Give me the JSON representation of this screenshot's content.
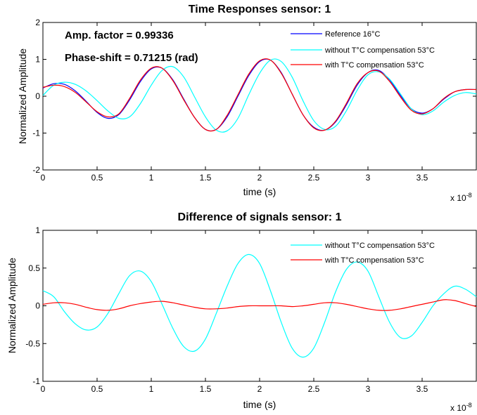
{
  "chart_data": [
    {
      "type": "line",
      "title": "Time Responses sensor: 1",
      "xlabel": "time (s)",
      "ylabel": "Normalized Amplitude",
      "x_multiplier_label": "x 10",
      "x_multiplier_exponent": "-8",
      "xlim": [
        0,
        4
      ],
      "ylim": [
        -2,
        2
      ],
      "x_ticks": [
        0,
        0.5,
        1,
        1.5,
        2,
        2.5,
        3,
        3.5
      ],
      "y_ticks": [
        -2,
        -1,
        0,
        1,
        2
      ],
      "grid": false,
      "legend_position": "top-right",
      "annotations": [
        "Amp. factor = 0.99336",
        "Phase-shift = 0.71215 (rad)"
      ],
      "x": [
        0,
        0.1,
        0.2,
        0.3,
        0.4,
        0.5,
        0.6,
        0.7,
        0.8,
        0.9,
        1.0,
        1.1,
        1.2,
        1.3,
        1.4,
        1.5,
        1.6,
        1.7,
        1.8,
        1.9,
        2.0,
        2.1,
        2.2,
        2.3,
        2.4,
        2.5,
        2.6,
        2.7,
        2.8,
        2.9,
        3.0,
        3.1,
        3.2,
        3.3,
        3.4,
        3.5,
        3.6,
        3.7,
        3.8,
        3.9,
        4.0
      ],
      "series": [
        {
          "name": "Reference 16°C",
          "color": "#0000ff",
          "values": [
            0.22,
            0.34,
            0.32,
            0.14,
            -0.14,
            -0.44,
            -0.6,
            -0.5,
            -0.1,
            0.4,
            0.74,
            0.76,
            0.44,
            -0.08,
            -0.58,
            -0.9,
            -0.9,
            -0.56,
            0.0,
            0.56,
            0.94,
            0.98,
            0.64,
            0.06,
            -0.5,
            -0.84,
            -0.92,
            -0.7,
            -0.24,
            0.3,
            0.64,
            0.7,
            0.44,
            0.02,
            -0.34,
            -0.46,
            -0.34,
            -0.08,
            0.12,
            0.18,
            0.18
          ]
        },
        {
          "name": "without T°C compensation 53°C",
          "color": "#00ffff",
          "values": [
            0.02,
            0.3,
            0.38,
            0.32,
            0.14,
            -0.12,
            -0.4,
            -0.6,
            -0.56,
            -0.2,
            0.3,
            0.7,
            0.8,
            0.52,
            -0.02,
            -0.56,
            -0.92,
            -0.94,
            -0.6,
            0.04,
            0.62,
            0.98,
            0.94,
            0.52,
            -0.12,
            -0.66,
            -0.9,
            -0.82,
            -0.4,
            0.16,
            0.58,
            0.66,
            0.46,
            0.06,
            -0.34,
            -0.5,
            -0.4,
            -0.16,
            0.02,
            0.1,
            0.06
          ]
        },
        {
          "name": "with T°C compensation 53°C",
          "color": "#ff0000",
          "values": [
            0.24,
            0.3,
            0.26,
            0.1,
            -0.16,
            -0.42,
            -0.56,
            -0.48,
            -0.06,
            0.44,
            0.76,
            0.76,
            0.42,
            -0.1,
            -0.58,
            -0.9,
            -0.9,
            -0.52,
            0.04,
            0.6,
            0.96,
            0.98,
            0.62,
            0.06,
            -0.5,
            -0.86,
            -0.92,
            -0.68,
            -0.2,
            0.34,
            0.64,
            0.68,
            0.4,
            -0.02,
            -0.38,
            -0.48,
            -0.34,
            -0.06,
            0.12,
            0.18,
            0.18
          ]
        }
      ]
    },
    {
      "type": "line",
      "title": "Difference of signals sensor: 1",
      "xlabel": "time (s)",
      "ylabel": "Normalized Amplitude",
      "x_multiplier_label": "x 10",
      "x_multiplier_exponent": "-8",
      "xlim": [
        0,
        4
      ],
      "ylim": [
        -1,
        1
      ],
      "x_ticks": [
        0,
        0.5,
        1,
        1.5,
        2,
        2.5,
        3,
        3.5
      ],
      "y_ticks": [
        -1,
        -0.5,
        0,
        0.5,
        1
      ],
      "grid": false,
      "legend_position": "top-right",
      "x": [
        0,
        0.1,
        0.2,
        0.3,
        0.4,
        0.5,
        0.6,
        0.7,
        0.8,
        0.9,
        1.0,
        1.1,
        1.2,
        1.3,
        1.4,
        1.5,
        1.6,
        1.7,
        1.8,
        1.9,
        2.0,
        2.1,
        2.2,
        2.3,
        2.4,
        2.5,
        2.6,
        2.7,
        2.8,
        2.9,
        3.0,
        3.1,
        3.2,
        3.3,
        3.4,
        3.5,
        3.6,
        3.7,
        3.8,
        3.9,
        4.0
      ],
      "series": [
        {
          "name": "without T°C compensation 53°C",
          "color": "#00ffff",
          "values": [
            0.2,
            0.12,
            -0.08,
            -0.24,
            -0.32,
            -0.28,
            -0.1,
            0.16,
            0.4,
            0.46,
            0.32,
            0.02,
            -0.3,
            -0.54,
            -0.6,
            -0.44,
            -0.1,
            0.26,
            0.56,
            0.68,
            0.56,
            0.2,
            -0.22,
            -0.56,
            -0.68,
            -0.56,
            -0.22,
            0.18,
            0.48,
            0.58,
            0.46,
            0.12,
            -0.22,
            -0.42,
            -0.4,
            -0.22,
            0.0,
            0.16,
            0.26,
            0.22,
            0.12
          ]
        },
        {
          "name": "with T°C compensation 53°C",
          "color": "#ff0000",
          "values": [
            0.02,
            0.04,
            0.04,
            0.02,
            -0.02,
            -0.05,
            -0.06,
            -0.04,
            0.0,
            0.03,
            0.05,
            0.06,
            0.04,
            0.01,
            -0.02,
            -0.04,
            -0.04,
            -0.03,
            -0.01,
            0.0,
            0.0,
            0.0,
            0.0,
            -0.01,
            0.0,
            0.02,
            0.04,
            0.04,
            0.02,
            -0.01,
            -0.04,
            -0.06,
            -0.06,
            -0.04,
            -0.01,
            0.02,
            0.05,
            0.08,
            0.07,
            0.03,
            -0.01
          ]
        }
      ]
    }
  ]
}
